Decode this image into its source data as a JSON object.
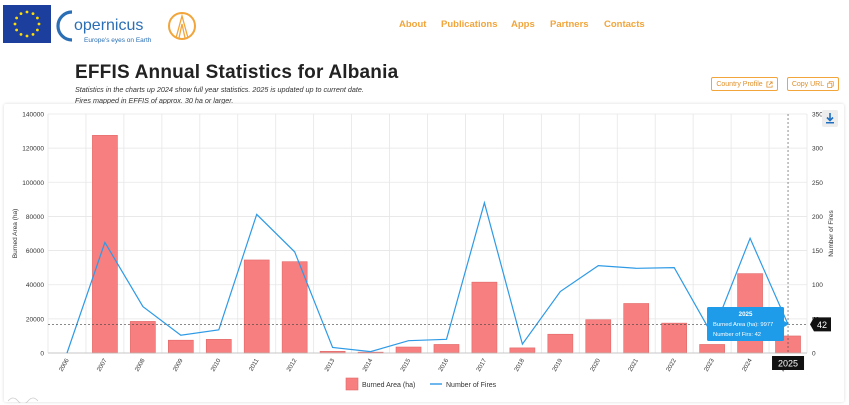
{
  "header": {
    "logo_name": "opernicus",
    "logo_tagline": "Europe's eyes on Earth",
    "nav": [
      "About",
      "Publications",
      "Apps",
      "Partners",
      "Contacts"
    ]
  },
  "page": {
    "title": "EFFIS Annual Statistics for Albania",
    "subtitle_line1": "Statistics in the charts up 2024 show full year statistics. 2025 is updated up to current date.",
    "subtitle_line2": "Fires mapped in EFFIS of approx. 30 ha or larger.",
    "country_profile_label": "Country Profile",
    "copy_url_label": "Copy URL"
  },
  "colors": {
    "accent": "#f1a53b",
    "bar": "#f77f7f",
    "bar_stroke": "#e06868",
    "line": "#2e9ae6",
    "tooltip": "#1e9be9"
  },
  "tooltip": {
    "title": "2025",
    "burned_label": "Burned Area (ha): 9977",
    "fires_label": "Number of Firs: 42",
    "crosshair_value": "42",
    "crosshair_year": "2025"
  },
  "chart_data": {
    "type": "bar",
    "categories": [
      "2006",
      "2007",
      "2008",
      "2009",
      "2010",
      "2011",
      "2012",
      "2013",
      "2014",
      "2015",
      "2016",
      "2017",
      "2018",
      "2019",
      "2020",
      "2021",
      "2022",
      "2023",
      "2024",
      "2025"
    ],
    "series": [
      {
        "name": "Burned Area (ha)",
        "type": "bar",
        "axis": "left",
        "values": [
          0,
          127500,
          18500,
          7500,
          8000,
          54500,
          53500,
          1000,
          500,
          3500,
          5000,
          41500,
          3000,
          11000,
          19500,
          29000,
          17500,
          5000,
          46500,
          9977
        ]
      },
      {
        "name": "Number of Fires",
        "type": "line",
        "axis": "right",
        "values": [
          0,
          162,
          68,
          26,
          34,
          203,
          148,
          8,
          2,
          18,
          20,
          220,
          13,
          90,
          128,
          124,
          125,
          27,
          168,
          42
        ]
      }
    ],
    "ylabel_left": "Burned Area (ha)",
    "ylabel_right": "Number of Fires",
    "ylim_left": [
      0,
      140000
    ],
    "ylim_right": [
      0,
      350
    ],
    "yticks_left": [
      "0",
      "20000",
      "40000",
      "60000",
      "80000",
      "100000",
      "120000",
      "140000"
    ],
    "yticks_right": [
      "0",
      "50",
      "100",
      "150",
      "200",
      "250",
      "300",
      "350"
    ],
    "grid": true,
    "legend_position": "bottom-center"
  }
}
